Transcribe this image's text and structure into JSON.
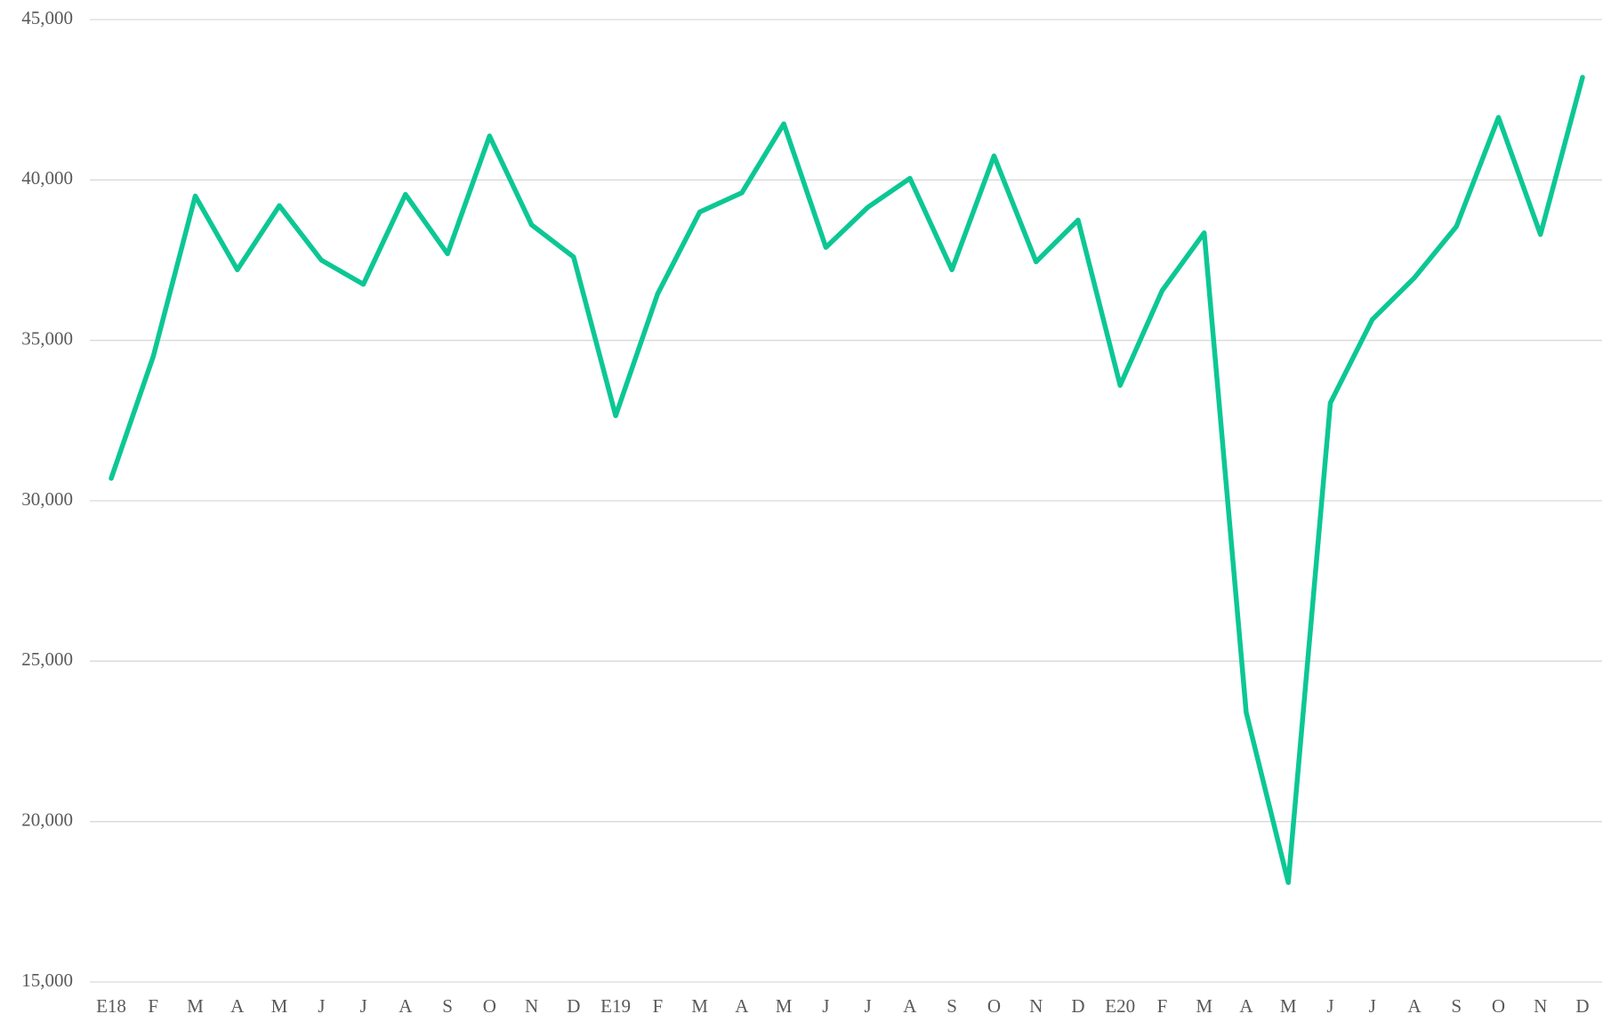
{
  "chart_data": {
    "type": "line",
    "categories": [
      "E18",
      "F",
      "M",
      "A",
      "M",
      "J",
      "J",
      "A",
      "S",
      "O",
      "N",
      "D",
      "E19",
      "F",
      "M",
      "A",
      "M",
      "J",
      "J",
      "A",
      "S",
      "O",
      "N",
      "D",
      "E20",
      "F",
      "M",
      "A",
      "M",
      "J",
      "J",
      "A",
      "S",
      "O",
      "N",
      "D"
    ],
    "series": [
      {
        "color": "#0cc794",
        "values": [
          30700,
          34500,
          39500,
          37200,
          39200,
          37500,
          36750,
          39550,
          37700,
          41370,
          38600,
          37600,
          32650,
          36450,
          39000,
          39600,
          41750,
          37900,
          39150,
          40050,
          37200,
          40750,
          37450,
          38750,
          33600,
          36550,
          38350,
          23400,
          18100,
          33050,
          35650,
          36950,
          38550,
          41950,
          38300,
          43200
        ]
      }
    ],
    "ylim": [
      15000,
      45000
    ],
    "yticks": [
      {
        "value": 15000,
        "label": "15,000"
      },
      {
        "value": 20000,
        "label": "20,000"
      },
      {
        "value": 25000,
        "label": "25,000"
      },
      {
        "value": 30000,
        "label": "30,000"
      },
      {
        "value": 35000,
        "label": "35,000"
      },
      {
        "value": 40000,
        "label": "40,000"
      },
      {
        "value": 45000,
        "label": "45,000"
      }
    ],
    "grid": true
  }
}
